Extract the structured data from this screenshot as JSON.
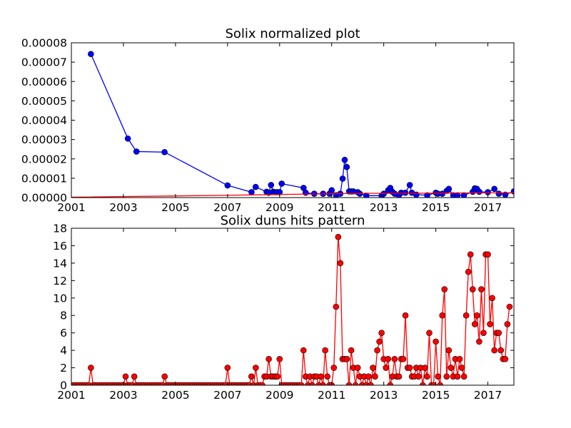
{
  "chart_data": [
    {
      "type": "line",
      "title": "Solix normalized plot",
      "xlabel": "",
      "ylabel": "",
      "xlim": [
        2001.0,
        2018.0
      ],
      "ylim": [
        0,
        8e-05
      ],
      "x_ticks": [
        "2001",
        "2003",
        "2005",
        "2007",
        "2009",
        "2011",
        "2013",
        "2015",
        "2017"
      ],
      "y_ticks": [
        "0.00000",
        "0.00001",
        "0.00002",
        "0.00003",
        "0.00004",
        "0.00005",
        "0.00006",
        "0.00007",
        "0.00008"
      ],
      "grid": false,
      "series": [
        {
          "color": "#0000ff",
          "marker": "circle",
          "points": [
            [
              2001.75,
              7.42e-05
            ],
            [
              2003.17,
              3.05e-05
            ],
            [
              2003.5,
              2.38e-05
            ],
            [
              2004.58,
              2.35e-05
            ],
            [
              2007.0,
              6.3e-06
            ],
            [
              2007.92,
              2.8e-06
            ],
            [
              2008.08,
              5.5e-06
            ],
            [
              2008.5,
              3e-06
            ],
            [
              2008.58,
              2.5e-06
            ],
            [
              2008.67,
              6.5e-06
            ],
            [
              2008.75,
              3e-06
            ],
            [
              2008.83,
              2.8e-06
            ],
            [
              2008.92,
              2.8e-06
            ],
            [
              2009.0,
              2.8e-06
            ],
            [
              2009.08,
              7.2e-06
            ],
            [
              2009.92,
              5e-06
            ],
            [
              2010.0,
              2.5e-06
            ],
            [
              2010.33,
              2e-06
            ],
            [
              2010.67,
              2e-06
            ],
            [
              2010.92,
              2e-06
            ],
            [
              2011.0,
              3.8e-06
            ],
            [
              2011.17,
              1.2e-06
            ],
            [
              2011.33,
              2e-06
            ],
            [
              2011.42,
              9.8e-06
            ],
            [
              2011.5,
              1.95e-05
            ],
            [
              2011.58,
              1.58e-05
            ],
            [
              2011.67,
              3.2e-06
            ],
            [
              2011.75,
              3.2e-06
            ],
            [
              2011.83,
              3.2e-06
            ],
            [
              2012.0,
              2.8e-06
            ],
            [
              2012.08,
              2e-06
            ],
            [
              2012.33,
              1e-06
            ],
            [
              2012.92,
              1e-06
            ],
            [
              2013.0,
              2e-06
            ],
            [
              2013.17,
              3.8e-06
            ],
            [
              2013.25,
              5e-06
            ],
            [
              2013.33,
              3e-06
            ],
            [
              2013.42,
              2e-06
            ],
            [
              2013.58,
              1.2e-06
            ],
            [
              2013.67,
              2.5e-06
            ],
            [
              2013.83,
              2.5e-06
            ],
            [
              2014.0,
              6.5e-06
            ],
            [
              2014.08,
              2.5e-06
            ],
            [
              2014.25,
              1.5e-06
            ],
            [
              2014.67,
              1.2e-06
            ],
            [
              2015.0,
              2.5e-06
            ],
            [
              2015.08,
              2e-06
            ],
            [
              2015.25,
              2e-06
            ],
            [
              2015.42,
              3.5e-06
            ],
            [
              2015.5,
              4.5e-06
            ],
            [
              2015.67,
              1.2e-06
            ],
            [
              2015.83,
              1.2e-06
            ],
            [
              2016.08,
              1.2e-06
            ],
            [
              2016.42,
              3e-06
            ],
            [
              2016.5,
              4.8e-06
            ],
            [
              2016.58,
              4.5e-06
            ],
            [
              2016.67,
              3e-06
            ],
            [
              2017.0,
              2.8e-06
            ],
            [
              2017.25,
              4.5e-06
            ],
            [
              2017.42,
              2e-06
            ],
            [
              2017.67,
              1.5e-06
            ],
            [
              2018.0,
              3.2e-06
            ]
          ]
        },
        {
          "color": "#ff0000",
          "marker": "none",
          "points": [
            [
              2001.0,
              2e-07
            ],
            [
              2007.0,
              1.2e-06
            ],
            [
              2010.0,
              1.8e-06
            ],
            [
              2012.0,
              2.2e-06
            ],
            [
              2014.0,
              2.2e-06
            ],
            [
              2016.0,
              2.4e-06
            ],
            [
              2018.0,
              2.5e-06
            ]
          ]
        }
      ]
    },
    {
      "type": "line",
      "title": "Solix duns hits pattern",
      "xlabel": "",
      "ylabel": "",
      "xlim": [
        2001.0,
        2018.0
      ],
      "ylim": [
        0,
        18
      ],
      "x_ticks": [
        "2001",
        "2003",
        "2005",
        "2007",
        "2009",
        "2011",
        "2013",
        "2015",
        "2017"
      ],
      "y_ticks": [
        "0",
        "2",
        "4",
        "6",
        "8",
        "10",
        "12",
        "14",
        "16",
        "18"
      ],
      "grid": false,
      "series": [
        {
          "color": "#ff0000",
          "marker": "circle",
          "start": 2001.0,
          "step": 0.0833333,
          "values": [
            0,
            0,
            0,
            0,
            0,
            0,
            0,
            0,
            0,
            2,
            0,
            0,
            0,
            0,
            0,
            0,
            0,
            0,
            0,
            0,
            0,
            0,
            0,
            0,
            0,
            1,
            0,
            0,
            0,
            1,
            0,
            0,
            0,
            0,
            0,
            0,
            0,
            0,
            0,
            0,
            0,
            0,
            0,
            1,
            0,
            0,
            0,
            0,
            0,
            0,
            0,
            0,
            0,
            0,
            0,
            0,
            0,
            0,
            0,
            0,
            0,
            0,
            0,
            0,
            0,
            0,
            0,
            0,
            0,
            0,
            0,
            0,
            2,
            0,
            0,
            0,
            0,
            0,
            0,
            0,
            0,
            0,
            0,
            1,
            0,
            2,
            0,
            0,
            0,
            1,
            1,
            3,
            1,
            1,
            1,
            1,
            3,
            0,
            0,
            0,
            0,
            0,
            0,
            0,
            0,
            0,
            0,
            4,
            1,
            0,
            1,
            0,
            1,
            1,
            0,
            1,
            0,
            4,
            1,
            0,
            0,
            2,
            9,
            17,
            14,
            3,
            3,
            3,
            0,
            4,
            2,
            0,
            2,
            1,
            0,
            1,
            0,
            1,
            0,
            2,
            1,
            4,
            5,
            6,
            3,
            2,
            3,
            0,
            1,
            3,
            1,
            1,
            3,
            3,
            8,
            2,
            2,
            1,
            1,
            2,
            1,
            2,
            0,
            2,
            1,
            6,
            0,
            0,
            5,
            1,
            0,
            8,
            11,
            1,
            4,
            2,
            1,
            3,
            1,
            3,
            2,
            1,
            8,
            13,
            15,
            11,
            7,
            8,
            5,
            11,
            6,
            15,
            15,
            7,
            10,
            4,
            6,
            6,
            4,
            3,
            3,
            7,
            9
          ]
        }
      ]
    }
  ]
}
